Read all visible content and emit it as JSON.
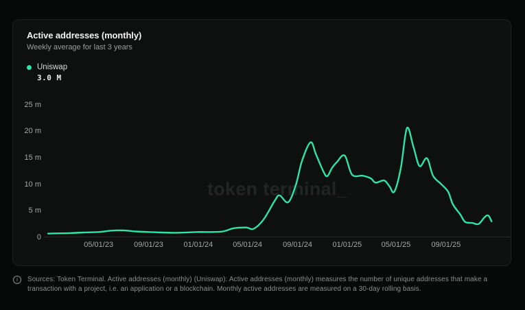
{
  "card": {
    "title": "Active addresses (monthly)",
    "subtitle": "Weekly average for last 3 years",
    "legend": {
      "series_label": "Uniswap",
      "latest_value": "3.0 M"
    },
    "watermark": "token terminal_"
  },
  "footer": {
    "text": "Sources: Token Terminal. Active addresses (monthly) (Uniswap): Active addresses (monthly) measures the number of unique addresses that make a transaction with a project, i.e. an application or a blockchain. Monthly active addresses are measured on a 30-day rolling basis."
  },
  "chart_data": {
    "type": "line",
    "title": "Active addresses (monthly)",
    "subtitle": "Weekly average for last 3 years",
    "unit": "millions of addresses",
    "grid": false,
    "legend_position": "top-left",
    "background": "#0e0f0f",
    "ylim": [
      0,
      25
    ],
    "y_ticks": [
      "25 m",
      "20 m",
      "15 m",
      "10 m",
      "5 m",
      "0"
    ],
    "y_tick_values": [
      25,
      20,
      15,
      10,
      5,
      0
    ],
    "x_ticks": [
      "05/01/23",
      "09/01/23",
      "01/01/24",
      "05/01/24",
      "09/01/24",
      "01/01/25",
      "05/01/25",
      "09/01/25"
    ],
    "x_tick_dates": [
      "2023-05-01",
      "2023-09-01",
      "2024-01-01",
      "2024-05-01",
      "2024-09-01",
      "2025-01-01",
      "2025-05-01",
      "2025-09-01"
    ],
    "x_domain": [
      "2022-12-21",
      "2026-02-05"
    ],
    "series": [
      {
        "name": "Uniswap",
        "color": "#2ee5a9",
        "latest_value_label": "3.0 M",
        "points": [
          [
            "2022-12-28",
            0.7
          ],
          [
            "2023-01-25",
            0.75
          ],
          [
            "2023-02-22",
            0.8
          ],
          [
            "2023-03-25",
            0.9
          ],
          [
            "2023-05-01",
            1.0
          ],
          [
            "2023-06-01",
            1.25
          ],
          [
            "2023-07-01",
            1.3
          ],
          [
            "2023-08-01",
            1.1
          ],
          [
            "2023-09-01",
            1.0
          ],
          [
            "2023-10-01",
            0.9
          ],
          [
            "2023-11-01",
            0.85
          ],
          [
            "2023-12-01",
            0.9
          ],
          [
            "2024-01-01",
            1.0
          ],
          [
            "2024-02-01",
            1.0
          ],
          [
            "2024-03-01",
            1.1
          ],
          [
            "2024-03-28",
            1.7
          ],
          [
            "2024-04-28",
            1.85
          ],
          [
            "2024-05-16",
            1.6
          ],
          [
            "2024-06-10",
            3.4
          ],
          [
            "2024-07-07",
            6.9
          ],
          [
            "2024-07-19",
            7.9
          ],
          [
            "2024-08-09",
            6.6
          ],
          [
            "2024-08-28",
            9.9
          ],
          [
            "2024-09-12",
            14.4
          ],
          [
            "2024-10-03",
            17.9
          ],
          [
            "2024-10-16",
            15.7
          ],
          [
            "2024-11-03",
            12.5
          ],
          [
            "2024-11-13",
            11.5
          ],
          [
            "2024-11-25",
            13.1
          ],
          [
            "2024-12-07",
            14.2
          ],
          [
            "2024-12-26",
            15.4
          ],
          [
            "2025-01-13",
            11.8
          ],
          [
            "2025-02-08",
            11.6
          ],
          [
            "2025-02-28",
            11.1
          ],
          [
            "2025-03-12",
            10.3
          ],
          [
            "2025-04-02",
            10.7
          ],
          [
            "2025-04-15",
            9.6
          ],
          [
            "2025-04-27",
            8.6
          ],
          [
            "2025-05-13",
            13.1
          ],
          [
            "2025-05-28",
            20.6
          ],
          [
            "2025-06-13",
            17.0
          ],
          [
            "2025-06-28",
            13.4
          ],
          [
            "2025-07-16",
            14.9
          ],
          [
            "2025-07-31",
            11.6
          ],
          [
            "2025-08-19",
            10.1
          ],
          [
            "2025-09-06",
            8.6
          ],
          [
            "2025-09-18",
            6.2
          ],
          [
            "2025-10-06",
            4.3
          ],
          [
            "2025-10-18",
            2.9
          ],
          [
            "2025-11-05",
            2.7
          ],
          [
            "2025-11-20",
            2.5
          ],
          [
            "2025-12-05",
            3.8
          ],
          [
            "2025-12-14",
            4.1
          ],
          [
            "2025-12-22",
            3.0
          ]
        ]
      }
    ]
  }
}
